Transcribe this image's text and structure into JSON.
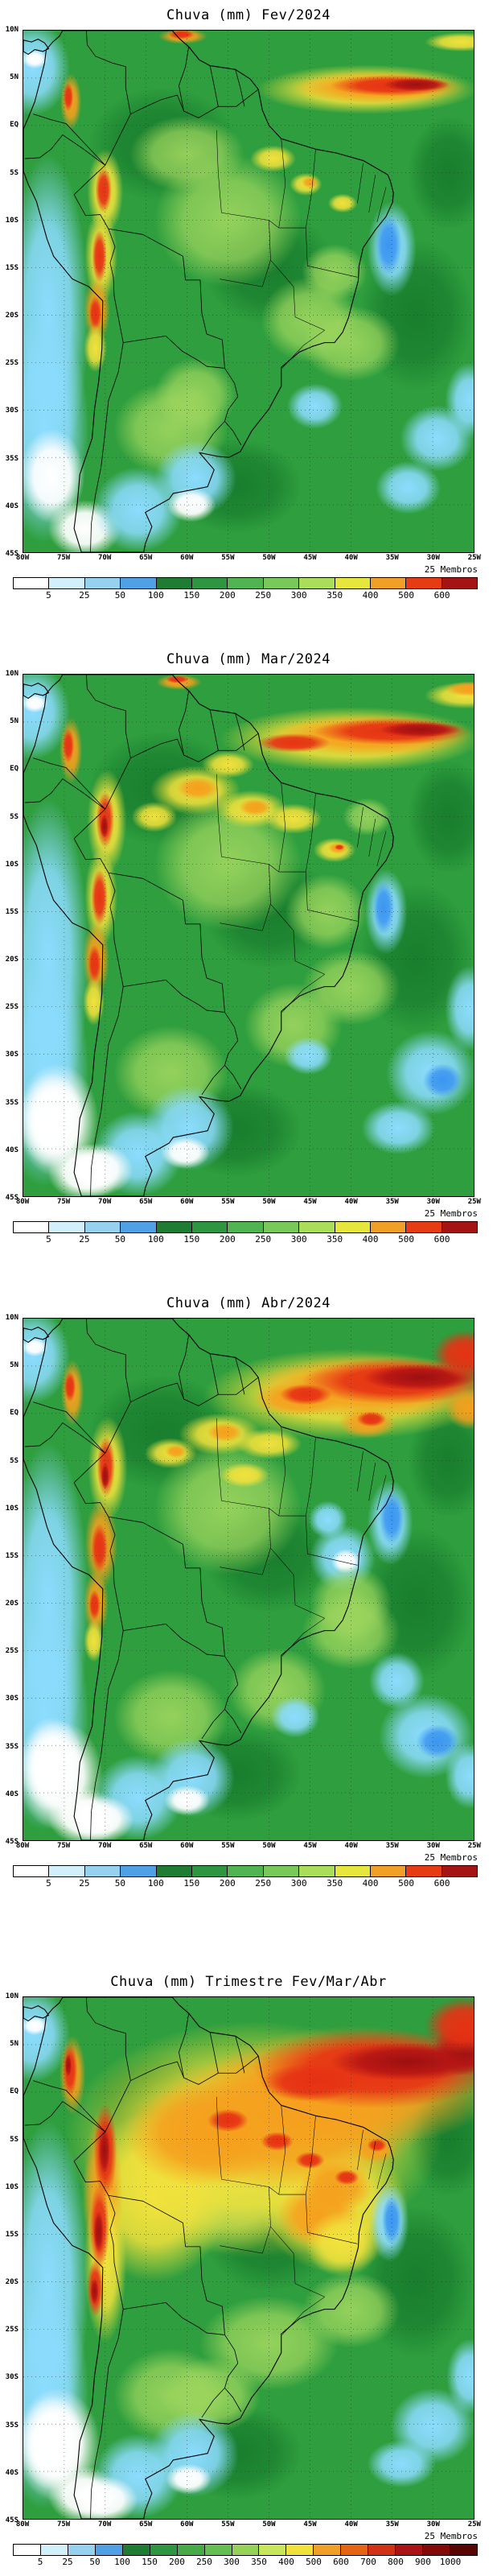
{
  "panels": [
    {
      "title": "Chuva (mm) Fev/2024",
      "members_label": "25 Membros"
    },
    {
      "title": "Chuva (mm) Mar/2024",
      "members_label": "25 Membros"
    },
    {
      "title": "Chuva (mm) Abr/2024",
      "members_label": "25 Membros"
    },
    {
      "title": "Chuva (mm) Trimestre Fev/Mar/Abr",
      "members_label": "25 Membros"
    }
  ],
  "axes": {
    "lat": [
      "10N",
      "5N",
      "EQ",
      "5S",
      "10S",
      "15S",
      "20S",
      "25S",
      "30S",
      "35S",
      "40S",
      "45S"
    ],
    "lon": [
      "80W",
      "75W",
      "70W",
      "65W",
      "60W",
      "55W",
      "50W",
      "45W",
      "40W",
      "35W",
      "30W",
      "25W"
    ]
  },
  "colorbars": {
    "cb12": {
      "labels": [
        "5",
        "25",
        "50",
        "100",
        "150",
        "200",
        "250",
        "300",
        "350",
        "400",
        "500",
        "600"
      ],
      "colors": [
        "#ffffff",
        "#d2f0fa",
        "#96d2f0",
        "#50a0e6",
        "#1e7d32",
        "#2e9640",
        "#50b450",
        "#78c85a",
        "#aade5a",
        "#e6e63c",
        "#f0a028",
        "#e63c14",
        "#a51414"
      ]
    },
    "cb16": {
      "labels": [
        "5",
        "25",
        "50",
        "100",
        "150",
        "200",
        "250",
        "300",
        "350",
        "400",
        "500",
        "600",
        "700",
        "800",
        "900",
        "1000"
      ],
      "colors": [
        "#ffffff",
        "#d2f0fa",
        "#96d2f0",
        "#50a0e6",
        "#1e7d32",
        "#2e9640",
        "#46aa46",
        "#64be50",
        "#96d25a",
        "#c8e65a",
        "#f0e13c",
        "#f0a028",
        "#e66414",
        "#d23214",
        "#aa1414",
        "#820a0a",
        "#5a0505"
      ]
    }
  },
  "chart_data": [
    {
      "type": "heatmap",
      "title": "Chuva (mm) Fev/2024",
      "units": "mm",
      "members": 25,
      "scale_mm": [
        5,
        25,
        50,
        100,
        150,
        200,
        250,
        300,
        350,
        400,
        500,
        600
      ],
      "lat_range": [
        "10N",
        "45S"
      ],
      "lon_range": [
        "80W",
        "25W"
      ]
    },
    {
      "type": "heatmap",
      "title": "Chuva (mm) Mar/2024",
      "units": "mm",
      "members": 25,
      "scale_mm": [
        5,
        25,
        50,
        100,
        150,
        200,
        250,
        300,
        350,
        400,
        500,
        600
      ],
      "lat_range": [
        "10N",
        "45S"
      ],
      "lon_range": [
        "80W",
        "25W"
      ]
    },
    {
      "type": "heatmap",
      "title": "Chuva (mm) Abr/2024",
      "units": "mm",
      "members": 25,
      "scale_mm": [
        5,
        25,
        50,
        100,
        150,
        200,
        250,
        300,
        350,
        400,
        500,
        600
      ],
      "lat_range": [
        "10N",
        "45S"
      ],
      "lon_range": [
        "80W",
        "25W"
      ]
    },
    {
      "type": "heatmap",
      "title": "Chuva (mm) Trimestre Fev/Mar/Abr",
      "units": "mm",
      "members": 25,
      "scale_mm": [
        5,
        25,
        50,
        100,
        150,
        200,
        250,
        300,
        350,
        400,
        500,
        600,
        700,
        800,
        900,
        1000
      ],
      "lat_range": [
        "10N",
        "45S"
      ],
      "lon_range": [
        "80W",
        "25W"
      ]
    }
  ]
}
